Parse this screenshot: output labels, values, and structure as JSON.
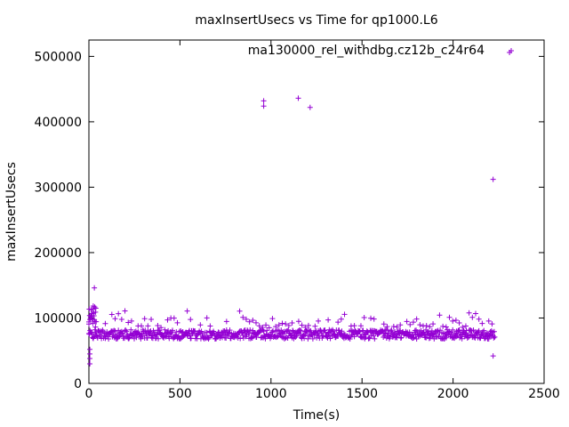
{
  "chart_data": {
    "type": "scatter",
    "title": "maxInsertUsecs vs Time for qp1000.L6",
    "xlabel": "Time(s)",
    "ylabel": "maxInsertUsecs",
    "xlim": [
      0,
      2500
    ],
    "ylim": [
      0,
      525000
    ],
    "x_ticks": [
      "0",
      "500",
      "1000",
      "1500",
      "2000",
      "2500"
    ],
    "y_ticks": [
      "0",
      "100000",
      "200000",
      "300000",
      "400000",
      "500000"
    ],
    "legend_position": "top-right",
    "color": "#9400d3",
    "series": [
      {
        "name": "ma130000_rel_withdbg.cz12b_c24r64",
        "outliers": [
          {
            "x": 960,
            "y": 432000
          },
          {
            "x": 960,
            "y": 424000
          },
          {
            "x": 1150,
            "y": 436000
          },
          {
            "x": 1215,
            "y": 422000
          },
          {
            "x": 2220,
            "y": 312000
          },
          {
            "x": 2310,
            "y": 506000
          },
          {
            "x": 30,
            "y": 146000
          },
          {
            "x": 5,
            "y": 30000
          },
          {
            "x": 5,
            "y": 38000
          },
          {
            "x": 5,
            "y": 45000
          },
          {
            "x": 5,
            "y": 52000
          },
          {
            "x": 2220,
            "y": 42000
          }
        ],
        "band": {
          "x_start": 0,
          "x_end": 2230,
          "y_center": 75000,
          "y_spread": 7000,
          "upper_sparse_y": [
            85000,
            112000
          ]
        }
      }
    ]
  }
}
